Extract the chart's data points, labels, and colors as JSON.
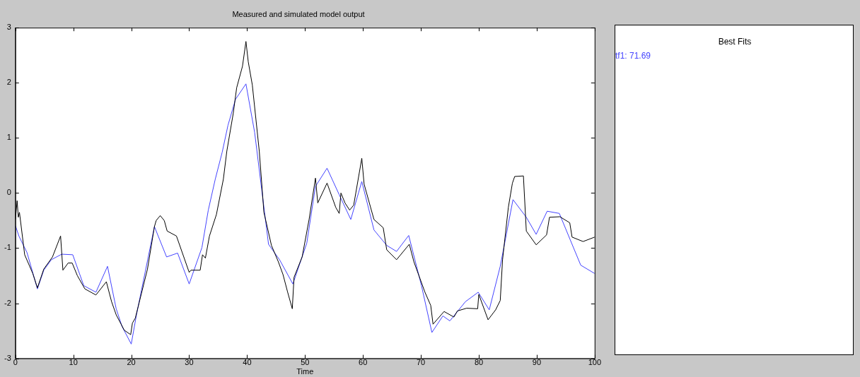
{
  "chart_data": {
    "type": "line",
    "title": "Measured and simulated model output",
    "xlabel": "Time",
    "legend_title": "Best Fits",
    "legend": "right",
    "xlim": [
      0,
      100
    ],
    "xticks": [
      0,
      10,
      20,
      30,
      40,
      50,
      60,
      70,
      80,
      90,
      100
    ],
    "ylim": [
      -3,
      3
    ],
    "yticks": [
      -3,
      -2,
      -1,
      0,
      1,
      2,
      3
    ],
    "series": [
      {
        "color": "#000000",
        "x": [
          0,
          0.3,
          0.5,
          0.7,
          1.6,
          3,
          3.8,
          4.9,
          6.4,
          7.8,
          8.2,
          9.1,
          9.8,
          10.7,
          12,
          13.9,
          15.7,
          16.6,
          17.4,
          18.8,
          19.9,
          20.2,
          20.7,
          22.8,
          24,
          24.3,
          25,
          25.7,
          26.2,
          27.8,
          30,
          30.3,
          31.9,
          32.3,
          32.8,
          33.5,
          34.7,
          35.9,
          36.5,
          37.6,
          38.2,
          39.2,
          39.8,
          40.2,
          40.9,
          42.1,
          42.9,
          44.2,
          45.4,
          46.2,
          47,
          47.8,
          48.1,
          49.5,
          50.7,
          51.8,
          52.2,
          53.8,
          55.3,
          55.9,
          56.2,
          56.9,
          57.7,
          58.4,
          59.8,
          60.2,
          61.9,
          63.5,
          64.1,
          65.8,
          68,
          68.8,
          70.7,
          71.7,
          72.1,
          74,
          75.7,
          76.3,
          77.9,
          79.8,
          80,
          81.6,
          82.9,
          83.7,
          84.1,
          85.1,
          85.8,
          86.2,
          87.7,
          88.2,
          89.9,
          91.7,
          92.2,
          94,
          95.7,
          96.1,
          98,
          100
        ],
        "values": [
          -0.48,
          -0.14,
          -0.44,
          -0.35,
          -1.12,
          -1.46,
          -1.72,
          -1.38,
          -1.16,
          -0.78,
          -1.4,
          -1.27,
          -1.27,
          -1.5,
          -1.74,
          -1.85,
          -1.61,
          -1.97,
          -2.21,
          -2.49,
          -2.57,
          -2.36,
          -2.27,
          -1.38,
          -0.61,
          -0.5,
          -0.41,
          -0.5,
          -0.69,
          -0.78,
          -1.44,
          -1.4,
          -1.4,
          -1.12,
          -1.18,
          -0.78,
          -0.39,
          0.25,
          0.76,
          1.44,
          1.91,
          2.3,
          2.75,
          2.38,
          1.96,
          0.76,
          -0.35,
          -0.95,
          -1.25,
          -1.48,
          -1.8,
          -2.1,
          -1.53,
          -1.16,
          -0.48,
          0.27,
          -0.18,
          0.18,
          -0.26,
          -0.37,
          0,
          -0.18,
          -0.31,
          -0.22,
          0.63,
          0.16,
          -0.48,
          -0.63,
          -1.03,
          -1.21,
          -0.93,
          -1.25,
          -1.8,
          -2.04,
          -2.38,
          -2.15,
          -2.25,
          -2.14,
          -2.09,
          -2.1,
          -1.84,
          -2.3,
          -2.12,
          -1.95,
          -1.21,
          -0.26,
          0.18,
          0.3,
          0.31,
          -0.69,
          -0.94,
          -0.76,
          -0.44,
          -0.43,
          -0.54,
          -0.8,
          -0.88,
          -0.8
        ]
      },
      {
        "name": "tf1: 71.69",
        "color": "#4444ff",
        "x": [
          0,
          0.6,
          2,
          3.8,
          4.9,
          6.2,
          8,
          9.9,
          11.8,
          13.9,
          15.9,
          17.4,
          18.4,
          20,
          20.9,
          24,
          26.1,
          28,
          30,
          32.2,
          33.3,
          34.5,
          35.7,
          36.7,
          38,
          39.8,
          41.3,
          42.5,
          43.7,
          45.6,
          47.9,
          50.3,
          51.8,
          53.8,
          55.9,
          57.9,
          59.8,
          61.9,
          64.1,
          65.8,
          67.9,
          70.1,
          71.9,
          73.8,
          75,
          77.7,
          79.9,
          81.8,
          83.7,
          85.9,
          88.2,
          89.9,
          91.8,
          93.9,
          96.1,
          97.6,
          100
        ],
        "values": [
          -0.59,
          -0.78,
          -1.08,
          -1.74,
          -1.4,
          -1.21,
          -1.11,
          -1.12,
          -1.68,
          -1.8,
          -1.33,
          -2.1,
          -2.42,
          -2.74,
          -2.21,
          -0.61,
          -1.16,
          -1.09,
          -1.65,
          -0.99,
          -0.31,
          0.25,
          0.74,
          1.23,
          1.7,
          1.98,
          1.1,
          0.08,
          -0.93,
          -1.21,
          -1.65,
          -0.91,
          0.12,
          0.45,
          -0.03,
          -0.48,
          0.21,
          -0.67,
          -0.95,
          -1.06,
          -0.77,
          -1.68,
          -2.53,
          -2.23,
          -2.32,
          -1.97,
          -1.8,
          -2.12,
          -1.33,
          -0.12,
          -0.44,
          -0.75,
          -0.33,
          -0.37,
          -0.93,
          -1.31,
          -1.46
        ]
      }
    ]
  }
}
